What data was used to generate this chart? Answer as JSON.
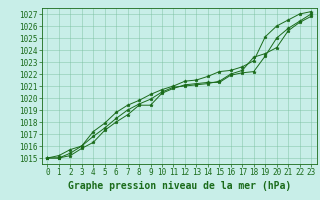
{
  "title": "Graphe pression niveau de la mer (hPa)",
  "x_labels": [
    "0",
    "1",
    "2",
    "3",
    "4",
    "5",
    "6",
    "7",
    "8",
    "9",
    "10",
    "11",
    "12",
    "13",
    "14",
    "15",
    "16",
    "17",
    "18",
    "19",
    "20",
    "21",
    "22",
    "23"
  ],
  "x_values": [
    0,
    1,
    2,
    3,
    4,
    5,
    6,
    7,
    8,
    9,
    10,
    11,
    12,
    13,
    14,
    15,
    16,
    17,
    18,
    19,
    20,
    21,
    22,
    23
  ],
  "series": [
    [
      1015.0,
      1015.0,
      1015.2,
      1015.8,
      1016.3,
      1017.3,
      1018.0,
      1018.6,
      1019.4,
      1019.4,
      1020.4,
      1020.8,
      1021.1,
      1021.2,
      1021.3,
      1021.3,
      1021.9,
      1022.1,
      1022.2,
      1023.5,
      1025.0,
      1025.8,
      1026.4,
      1027.0
    ],
    [
      1015.0,
      1015.0,
      1015.4,
      1016.0,
      1016.8,
      1017.5,
      1018.3,
      1019.0,
      1019.5,
      1019.9,
      1020.5,
      1020.9,
      1021.0,
      1021.1,
      1021.2,
      1021.4,
      1022.0,
      1022.3,
      1023.4,
      1023.7,
      1024.2,
      1025.6,
      1026.3,
      1026.8
    ],
    [
      1015.0,
      1015.2,
      1015.7,
      1016.0,
      1017.2,
      1017.9,
      1018.8,
      1019.4,
      1019.8,
      1020.3,
      1020.7,
      1021.0,
      1021.4,
      1021.5,
      1021.8,
      1022.2,
      1022.3,
      1022.6,
      1023.1,
      1025.1,
      1026.0,
      1026.5,
      1027.0,
      1027.2
    ]
  ],
  "line_color": "#1a6b1a",
  "marker": "*",
  "marker_size": 2.5,
  "bg_color": "#c8eee8",
  "grid_color": "#7abfa0",
  "axis_color": "#1a6b1a",
  "ylim": [
    1014.5,
    1027.5
  ],
  "yticks": [
    1015,
    1016,
    1017,
    1018,
    1019,
    1020,
    1021,
    1022,
    1023,
    1024,
    1025,
    1026,
    1027
  ],
  "xlim": [
    -0.5,
    23.5
  ],
  "title_fontsize": 7,
  "tick_fontsize": 5.5,
  "linewidth": 0.7
}
